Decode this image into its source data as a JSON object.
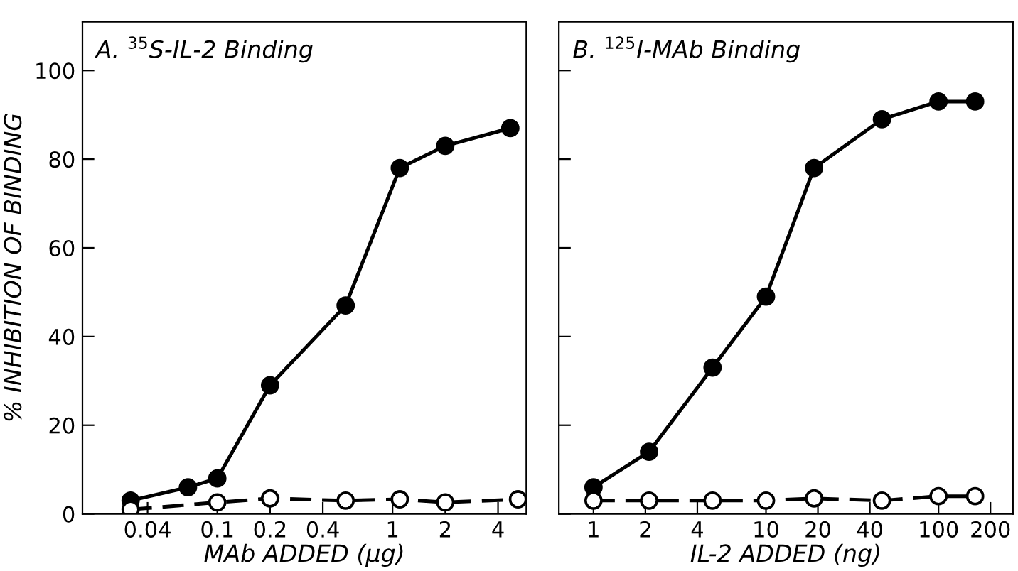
{
  "chart_data": [
    {
      "type": "line",
      "title": "A. $^{35}$S-IL-2 Binding",
      "xlabel": "MAb ADDED (μg)",
      "ylabel": "% INHIBITION OF BINDING",
      "log": "x",
      "xlim": [
        0.017,
        5.8
      ],
      "xticks": [
        0.04,
        0.1,
        0.2,
        0.4,
        1,
        2,
        4
      ],
      "ylim": [
        0,
        111
      ],
      "yticks": [
        0,
        20,
        40,
        60,
        80,
        100
      ],
      "series": [
        {
          "color": "#000000",
          "marker": "circle",
          "line_style": "solid",
          "x": [
            0.032,
            0.068,
            0.1,
            0.2,
            0.54,
            1.1,
            2,
            4.7
          ],
          "values": [
            3,
            6,
            8,
            29,
            47,
            78,
            83,
            87
          ]
        },
        {
          "color": "#000000",
          "marker": "circle",
          "line_style": "dashed",
          "x": [
            0.032,
            0.1,
            0.2,
            0.54,
            1.1,
            2,
            5.2
          ],
          "values": [
            1,
            2.6,
            3.5,
            3,
            3.3,
            2.6,
            3.3
          ]
        }
      ]
    },
    {
      "type": "line",
      "title": "B. $^{125}$I-MAb Binding",
      "xlabel": "IL-2 ADDED (ng)",
      "log": "x",
      "tick_labels": "x",
      "xlim": [
        0.63,
        270
      ],
      "xticks": [
        1,
        2,
        4,
        10,
        20,
        40,
        100,
        200
      ],
      "ylim": [
        0,
        111
      ],
      "yticks": [
        0,
        20,
        40,
        60,
        80,
        100
      ],
      "series": [
        {
          "color": "#000000",
          "marker": "circle",
          "line_style": "solid",
          "x": [
            1,
            2.1,
            4.9,
            10,
            19,
            47,
            100,
            163
          ],
          "values": [
            6,
            14,
            33,
            49,
            78,
            89,
            93,
            93
          ]
        },
        {
          "color": "#000000",
          "marker": "circle",
          "line_style": "dashed",
          "x": [
            1,
            2.1,
            4.9,
            10,
            19,
            47,
            100,
            163
          ],
          "values": [
            3,
            3,
            3,
            3,
            3.5,
            3,
            4,
            4
          ]
        }
      ]
    }
  ]
}
